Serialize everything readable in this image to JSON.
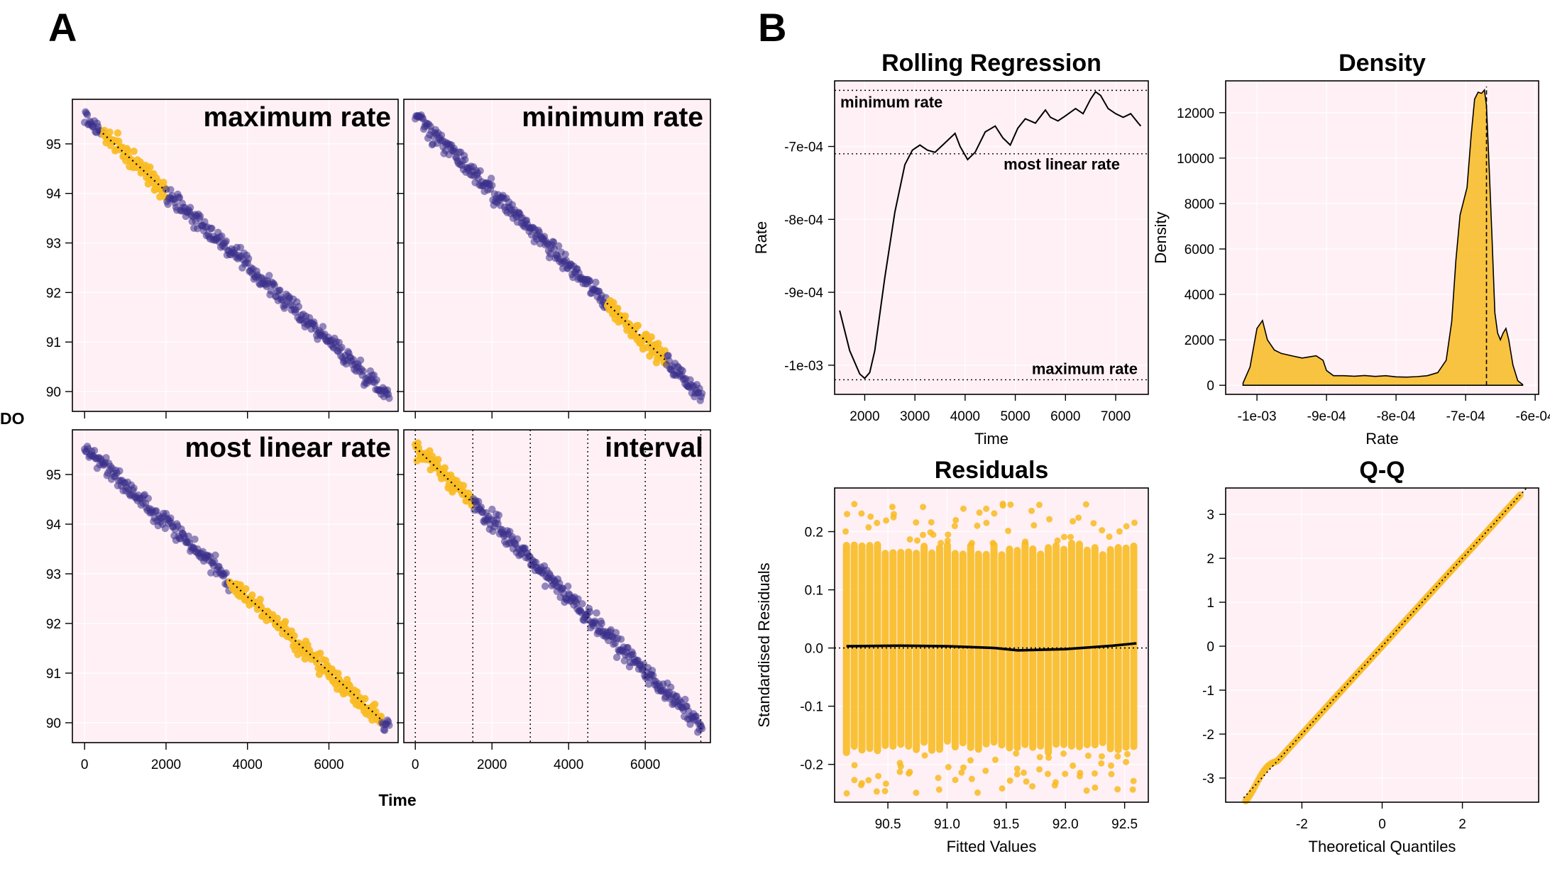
{
  "figure": {
    "panel_a_letter": "A",
    "panel_b_letter": "B"
  },
  "colors": {
    "panel_bg": "#fff0f5",
    "grid": "#ffffff",
    "point_main": "#3b2f8a",
    "point_highlight": "#f8bb22",
    "line": "#000000"
  },
  "chart_data": [
    {
      "id": "max",
      "type": "scatter",
      "title": "maximum rate",
      "xlabel": "",
      "ylabel": "DO",
      "xlim": [
        -300,
        7700
      ],
      "ylim": [
        89.6,
        95.9
      ],
      "yticks": [
        90,
        91,
        92,
        93,
        94,
        95
      ],
      "xticks": [
        0,
        2000,
        4000,
        6000
      ],
      "show_xticklabels": false,
      "show_yticklabels": true,
      "trend": {
        "x": [
          0,
          7500
        ],
        "y": [
          95.55,
          89.9
        ]
      },
      "highlight": {
        "start": 450,
        "end": 2000
      },
      "vlines": []
    },
    {
      "id": "min",
      "type": "scatter",
      "title": "minimum rate",
      "xlabel": "",
      "ylabel": "",
      "xlim": [
        -300,
        7700
      ],
      "ylim": [
        89.6,
        95.9
      ],
      "yticks": [
        90,
        91,
        92,
        93,
        94,
        95
      ],
      "xticks": [
        0,
        2000,
        4000,
        6000
      ],
      "show_xticklabels": false,
      "show_yticklabels": false,
      "trend": {
        "x": [
          0,
          7500
        ],
        "y": [
          95.55,
          89.9
        ]
      },
      "highlight": {
        "start": 5000,
        "end": 6550
      },
      "vlines": []
    },
    {
      "id": "linear",
      "type": "scatter",
      "title": "most linear rate",
      "xlabel": "",
      "ylabel": "",
      "xlim": [
        -300,
        7700
      ],
      "ylim": [
        89.6,
        95.9
      ],
      "yticks": [
        90,
        91,
        92,
        93,
        94,
        95
      ],
      "xticks": [
        0,
        2000,
        4000,
        6000
      ],
      "show_xticklabels": true,
      "show_yticklabels": true,
      "trend": {
        "x": [
          0,
          7500
        ],
        "y": [
          95.55,
          89.9
        ]
      },
      "highlight": {
        "start": 3550,
        "end": 7300
      },
      "vlines": []
    },
    {
      "id": "interval",
      "type": "scatter",
      "title": "interval",
      "xlabel": "Time",
      "ylabel": "",
      "xlim": [
        -300,
        7700
      ],
      "ylim": [
        89.6,
        95.9
      ],
      "yticks": [
        90,
        91,
        92,
        93,
        94,
        95
      ],
      "xticks": [
        0,
        2000,
        4000,
        6000
      ],
      "show_xticklabels": true,
      "show_yticklabels": false,
      "trend": {
        "x": [
          0,
          7500
        ],
        "y": [
          95.55,
          89.9
        ]
      },
      "highlight": {
        "start": 0,
        "end": 1500
      },
      "vlines": [
        0,
        1500,
        3000,
        4500,
        6000,
        7450
      ]
    },
    {
      "id": "rolling",
      "type": "line",
      "title": "Rolling Regression",
      "xlabel": "Time",
      "ylabel": "Rate",
      "xlim": [
        1400,
        7650
      ],
      "ylim": [
        -0.00104,
        -0.00061
      ],
      "xticks": [
        2000,
        3000,
        4000,
        5000,
        6000,
        7000
      ],
      "xticklabels": [
        "2000",
        "3000",
        "4000",
        "5000",
        "6000",
        "7000"
      ],
      "yticks": [
        -0.0007,
        -0.0008,
        -0.0009,
        -0.001
      ],
      "yticklabels": [
        "-7e-04",
        "-8e-04",
        "-9e-04",
        "-1e-03"
      ],
      "x": [
        1500,
        1700,
        1900,
        2000,
        2100,
        2200,
        2400,
        2600,
        2800,
        2950,
        3100,
        3250,
        3400,
        3600,
        3800,
        3900,
        4050,
        4200,
        4400,
        4600,
        4750,
        4900,
        5050,
        5200,
        5400,
        5600,
        5700,
        5850,
        6000,
        6200,
        6350,
        6500,
        6600,
        6700,
        6850,
        7000,
        7150,
        7300,
        7450,
        7500
      ],
      "y": [
        -0.000925,
        -0.00098,
        -0.001012,
        -0.001018,
        -0.00101,
        -0.00098,
        -0.00088,
        -0.00079,
        -0.000725,
        -0.000705,
        -0.000698,
        -0.000705,
        -0.000708,
        -0.000695,
        -0.000682,
        -0.0007,
        -0.000718,
        -0.000708,
        -0.00068,
        -0.000672,
        -0.000688,
        -0.000698,
        -0.000675,
        -0.000662,
        -0.000668,
        -0.00065,
        -0.00066,
        -0.000665,
        -0.000658,
        -0.000648,
        -0.000655,
        -0.000635,
        -0.000625,
        -0.00063,
        -0.000648,
        -0.000655,
        -0.00066,
        -0.000655,
        -0.000668,
        -0.000672
      ],
      "hlines": [
        {
          "value": -0.000623,
          "label": "minimum rate",
          "label_pos": "top-left"
        },
        {
          "value": -0.00071,
          "label": "most linear rate",
          "label_pos": "below-right"
        },
        {
          "value": -0.00102,
          "label": "maximum rate",
          "label_pos": "above-right"
        }
      ]
    },
    {
      "id": "density",
      "type": "area",
      "title": "Density",
      "xlabel": "Rate",
      "ylabel": "Density",
      "xlim": [
        -0.001045,
        -0.000595
      ],
      "ylim": [
        -400,
        13400
      ],
      "xticks": [
        -0.001,
        -0.0009,
        -0.0008,
        -0.0007,
        -0.0006
      ],
      "xticklabels": [
        "-1e-03",
        "-9e-04",
        "-8e-04",
        "-7e-04",
        "-6e-04"
      ],
      "yticks": [
        0,
        2000,
        4000,
        6000,
        8000,
        10000,
        12000
      ],
      "yticklabels": [
        "0",
        "2000",
        "4000",
        "6000",
        "8000",
        "10000",
        "12000"
      ],
      "x": [
        -0.00102,
        -0.00101,
        -0.001,
        -0.000992,
        -0.000985,
        -0.000975,
        -0.000965,
        -0.00095,
        -0.000935,
        -0.000925,
        -0.000915,
        -0.000905,
        -0.0009,
        -0.00089,
        -0.000875,
        -0.00086,
        -0.000845,
        -0.00083,
        -0.000815,
        -0.0008,
        -0.000785,
        -0.00077,
        -0.000755,
        -0.00074,
        -0.000728,
        -0.00072,
        -0.000714,
        -0.000708,
        -0.000703,
        -0.000698,
        -0.000692,
        -0.000687,
        -0.000682,
        -0.000677,
        -0.000673,
        -0.00067,
        -0.000666,
        -0.000662,
        -0.000658,
        -0.000654,
        -0.00065,
        -0.000646,
        -0.000642,
        -0.000638,
        -0.000632,
        -0.000625,
        -0.000618
      ],
      "y": [
        100,
        800,
        2500,
        2850,
        2000,
        1550,
        1400,
        1300,
        1200,
        1250,
        1300,
        1100,
        650,
        420,
        420,
        400,
        430,
        390,
        420,
        370,
        360,
        380,
        420,
        560,
        1100,
        2800,
        5500,
        7500,
        8100,
        8700,
        11000,
        12600,
        12900,
        12850,
        13000,
        12300,
        9500,
        6500,
        3200,
        2300,
        2000,
        2300,
        2500,
        2000,
        900,
        200,
        30
      ],
      "vline": -0.00067
    },
    {
      "id": "residuals",
      "type": "scatter",
      "title": "Residuals",
      "xlabel": "Fitted Values",
      "ylabel": "Standardised Residuals",
      "xlim": [
        90.05,
        92.7
      ],
      "ylim": [
        -0.265,
        0.275
      ],
      "xticks": [
        90.5,
        91,
        91.5,
        92,
        92.5
      ],
      "xticklabels": [
        "90.5",
        "91.0",
        "91.5",
        "92.0",
        "92.5"
      ],
      "yticks": [
        -0.2,
        -0.1,
        0,
        0.1,
        0.2
      ],
      "yticklabels": [
        "-0.2",
        "-0.1",
        "0.0",
        "0.1",
        "0.2"
      ],
      "column_start": 90.15,
      "column_end": 92.6,
      "column_step": 0.0656,
      "column_halfwidth": 0.17,
      "smooth_x": [
        90.15,
        90.6,
        91.0,
        91.4,
        91.6,
        92.0,
        92.4,
        92.6
      ],
      "smooth_y": [
        0.003,
        0.004,
        0.003,
        0.0,
        -0.004,
        -0.002,
        0.004,
        0.008
      ]
    },
    {
      "id": "qq",
      "type": "scatter",
      "title": "Q-Q",
      "xlabel": "Theoretical Quantiles",
      "ylabel": "",
      "xlim": [
        -3.9,
        3.9
      ],
      "ylim": [
        -3.55,
        3.6
      ],
      "xticks": [
        -2,
        0,
        2
      ],
      "xticklabels": [
        "-2",
        "0",
        "2"
      ],
      "yticks": [
        -3,
        -2,
        -1,
        0,
        1,
        2,
        3
      ],
      "yticklabels": [
        "-3",
        "-2",
        "-1",
        "0",
        "1",
        "2",
        "3"
      ],
      "ref_line": {
        "x": [
          -3.45,
          3.6
        ],
        "y": [
          -3.45,
          3.6
        ]
      }
    }
  ]
}
